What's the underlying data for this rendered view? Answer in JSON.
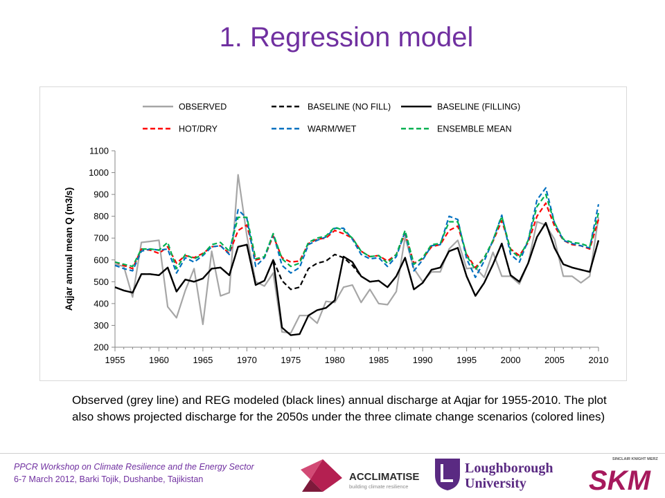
{
  "slide": {
    "title": "1. Regression model",
    "caption": "Observed (grey line) and REG modeled (black lines) annual discharge at Aqjar for 1955-2010. The plot also shows projected discharge for the 2050s under the three climate change scenarios (colored lines)"
  },
  "footer": {
    "line1": "PPCR Workshop on Climate Resilience and the Energy Sector",
    "line2": "6-7 March 2012, Barki Tojik, Dushanbe, Tajikistan"
  },
  "logos": {
    "acclimatise_name": "ACCLIMATISE",
    "acclimatise_tagline": "building climate resilience",
    "loughborough_line1": "Loughborough",
    "loughborough_line2": "University",
    "skm_top": "SINCLAIR KNIGHT MERZ",
    "skm_name": "SKM"
  },
  "colors": {
    "title": "#7030a0",
    "observed": "#a6a6a6",
    "baseline": "#000000",
    "hot_dry": "#ff0000",
    "warm_wet": "#0070c0",
    "ensemble": "#00b050"
  },
  "chart_data": {
    "type": "line",
    "ylabel": "Aqjar annual mean Q (m3/s)",
    "xlabel": "",
    "xlim": [
      1955,
      2010
    ],
    "ylim": [
      200,
      1100
    ],
    "xticks": [
      1955,
      1960,
      1965,
      1970,
      1975,
      1980,
      1985,
      1990,
      1995,
      2000,
      2005,
      2010
    ],
    "yticks": [
      200,
      300,
      400,
      500,
      600,
      700,
      800,
      900,
      1000,
      1100
    ],
    "grid": false,
    "legend_position": "top",
    "x": [
      1955,
      1956,
      1957,
      1958,
      1959,
      1960,
      1961,
      1962,
      1963,
      1964,
      1965,
      1966,
      1967,
      1968,
      1969,
      1970,
      1971,
      1972,
      1973,
      1974,
      1975,
      1976,
      1977,
      1978,
      1979,
      1980,
      1981,
      1982,
      1983,
      1984,
      1985,
      1986,
      1987,
      1988,
      1989,
      1990,
      1991,
      1992,
      1993,
      1994,
      1995,
      1996,
      1997,
      1998,
      1999,
      2000,
      2001,
      2002,
      2003,
      2004,
      2005,
      2006,
      2007,
      2008,
      2009,
      2010
    ],
    "series": [
      {
        "name": "OBSERVED",
        "color": "#a6a6a6",
        "dash": "solid",
        "values": [
          580,
          570,
          430,
          680,
          685,
          690,
          385,
          335,
          460,
          560,
          305,
          640,
          435,
          450,
          990,
          710,
          500,
          480,
          540,
          270,
          265,
          345,
          345,
          310,
          410,
          405,
          475,
          485,
          405,
          465,
          400,
          395,
          455,
          705,
          560,
          500,
          545,
          545,
          650,
          690,
          560,
          565,
          520,
          635,
          525,
          525,
          490,
          585,
          775,
          760,
          695,
          525,
          525,
          495,
          525,
          795
        ]
      },
      {
        "name": "BASELINE (NO FILL)",
        "color": "#000000",
        "dash": "dashed",
        "values": [
          475,
          460,
          450,
          535,
          535,
          530,
          565,
          455,
          510,
          500,
          515,
          560,
          565,
          530,
          660,
          670,
          485,
          505,
          600,
          505,
          465,
          475,
          560,
          585,
          595,
          625,
          610,
          575,
          525,
          500,
          505,
          475,
          525,
          610,
          465,
          495,
          555,
          565,
          640,
          655,
          525,
          435,
          495,
          580,
          675,
          530,
          500,
          585,
          705,
          770,
          655,
          580,
          565,
          555,
          545,
          690
        ]
      },
      {
        "name": "BASELINE (FILLING)",
        "color": "#000000",
        "dash": "solid",
        "values": [
          475,
          460,
          450,
          535,
          535,
          530,
          565,
          455,
          510,
          500,
          515,
          560,
          565,
          530,
          660,
          670,
          485,
          505,
          600,
          290,
          255,
          260,
          345,
          370,
          380,
          415,
          615,
          590,
          525,
          500,
          505,
          475,
          525,
          610,
          465,
          495,
          555,
          565,
          640,
          655,
          525,
          435,
          495,
          580,
          675,
          530,
          500,
          585,
          705,
          770,
          655,
          580,
          565,
          555,
          545,
          690
        ]
      },
      {
        "name": "HOT/DRY",
        "color": "#ff0000",
        "dash": "dashed",
        "values": [
          590,
          575,
          560,
          650,
          645,
          630,
          660,
          585,
          620,
          610,
          630,
          660,
          665,
          630,
          735,
          760,
          600,
          610,
          710,
          610,
          590,
          595,
          675,
          695,
          700,
          735,
          720,
          700,
          640,
          615,
          620,
          595,
          625,
          720,
          585,
          605,
          660,
          670,
          735,
          755,
          625,
          565,
          610,
          685,
          780,
          650,
          620,
          680,
          800,
          860,
          755,
          690,
          670,
          665,
          650,
          785
        ]
      },
      {
        "name": "WARM/WET",
        "color": "#0070c0",
        "dash": "dashed",
        "values": [
          575,
          560,
          550,
          640,
          650,
          645,
          650,
          540,
          610,
          590,
          620,
          660,
          665,
          625,
          830,
          790,
          570,
          610,
          720,
          575,
          540,
          565,
          670,
          690,
          705,
          745,
          745,
          695,
          625,
          605,
          610,
          570,
          615,
          730,
          550,
          600,
          665,
          670,
          800,
          785,
          605,
          520,
          595,
          690,
          805,
          625,
          590,
          690,
          875,
          930,
          770,
          690,
          675,
          665,
          655,
          855
        ]
      },
      {
        "name": "ENSEMBLE MEAN",
        "color": "#00b050",
        "dash": "dashed",
        "values": [
          590,
          580,
          570,
          650,
          650,
          645,
          680,
          560,
          625,
          605,
          625,
          670,
          680,
          640,
          795,
          795,
          605,
          615,
          720,
          605,
          570,
          585,
          680,
          700,
          710,
          750,
          735,
          700,
          640,
          615,
          620,
          585,
          625,
          735,
          580,
          610,
          670,
          675,
          775,
          775,
          620,
          555,
          610,
          690,
          800,
          645,
          610,
          690,
          845,
          900,
          770,
          695,
          680,
          675,
          660,
          815
        ]
      }
    ]
  }
}
